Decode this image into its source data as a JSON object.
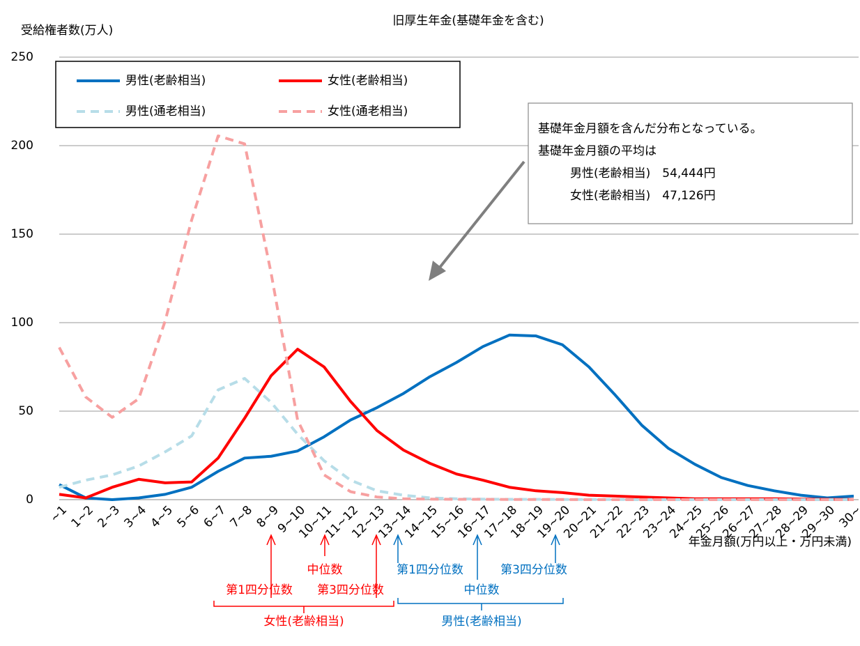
{
  "chart_data": {
    "type": "line",
    "title": "旧厚生年金(基礎年金を含む)",
    "y_label": "受給権者数(万人)",
    "x_label": "年金月額(万円以上・万円未満)",
    "categories": [
      "~1",
      "1~2",
      "2~3",
      "3~4",
      "4~5",
      "5~6",
      "6~7",
      "7~8",
      "8~9",
      "9~10",
      "10~11",
      "11~12",
      "12~13",
      "13~14",
      "14~15",
      "15~16",
      "16~17",
      "17~18",
      "18~19",
      "19~20",
      "20~21",
      "21~22",
      "22~23",
      "23~24",
      "24~25",
      "25~26",
      "26~27",
      "27~28",
      "28~29",
      "29~30",
      "30~"
    ],
    "series": [
      {
        "name": "男性(老齢相当)",
        "color": "#0070c0",
        "dashed": false,
        "values": [
          8.5,
          1,
          0,
          1,
          3,
          7,
          16,
          23.5,
          24.5,
          27.5,
          35.5,
          45,
          52,
          60,
          69.5,
          77.5,
          86.5,
          93,
          92.5,
          87.5,
          75,
          59,
          42,
          29,
          20,
          12.5,
          8,
          5,
          2.5,
          1,
          2
        ]
      },
      {
        "name": "女性(老齢相当)",
        "color": "#ff0000",
        "dashed": false,
        "values": [
          3,
          1,
          7,
          11.5,
          9.5,
          10,
          23.5,
          46,
          70,
          85,
          75,
          55.5,
          39,
          28,
          20.5,
          14.5,
          11,
          7,
          5,
          4,
          2.5,
          2,
          1.5,
          1,
          0.5,
          0.5,
          0.5,
          0.5,
          0.3,
          0.2,
          0.1
        ]
      },
      {
        "name": "男性(通老相当)",
        "color": "#b7dde8",
        "dashed": true,
        "values": [
          7,
          11,
          14,
          19,
          27,
          36,
          62,
          68.5,
          55,
          37,
          22,
          11,
          5,
          2.5,
          1,
          0.5,
          0.3,
          0.2,
          0.2,
          0.1,
          0.1,
          0.1,
          0,
          0,
          0,
          0,
          0,
          0,
          0,
          0,
          0
        ]
      },
      {
        "name": "女性(通老相当)",
        "color": "#f7a0a0",
        "dashed": true,
        "values": [
          86,
          58,
          46.5,
          57,
          101,
          158,
          205.5,
          201,
          128,
          45,
          14,
          4.5,
          1.5,
          0.5,
          0.3,
          0.2,
          0.2,
          0.1,
          0.1,
          0.1,
          0,
          0,
          0,
          0,
          0,
          0,
          0,
          0,
          0,
          0,
          0
        ]
      }
    ],
    "ylim": [
      0,
      250
    ],
    "yticks": [
      0,
      50,
      100,
      150,
      200,
      250
    ],
    "grid": true,
    "note": [
      "基礎年金月額を含んだ分布となっている。",
      "基礎年金月額の平均は",
      "男性(老齢相当)　54,444円",
      "女性(老齢相当)　47,126円"
    ],
    "quartiles": {
      "female": {
        "name": "女性(老齢相当)",
        "q1": "第1四分位数",
        "median": "中位数",
        "q3": "第3四分位数",
        "color": "#ff0000"
      },
      "male": {
        "name": "男性(老齢相当)",
        "q1": "第1四分位数",
        "median": "中位数",
        "q3": "第3四分位数",
        "color": "#0070c0"
      }
    }
  }
}
